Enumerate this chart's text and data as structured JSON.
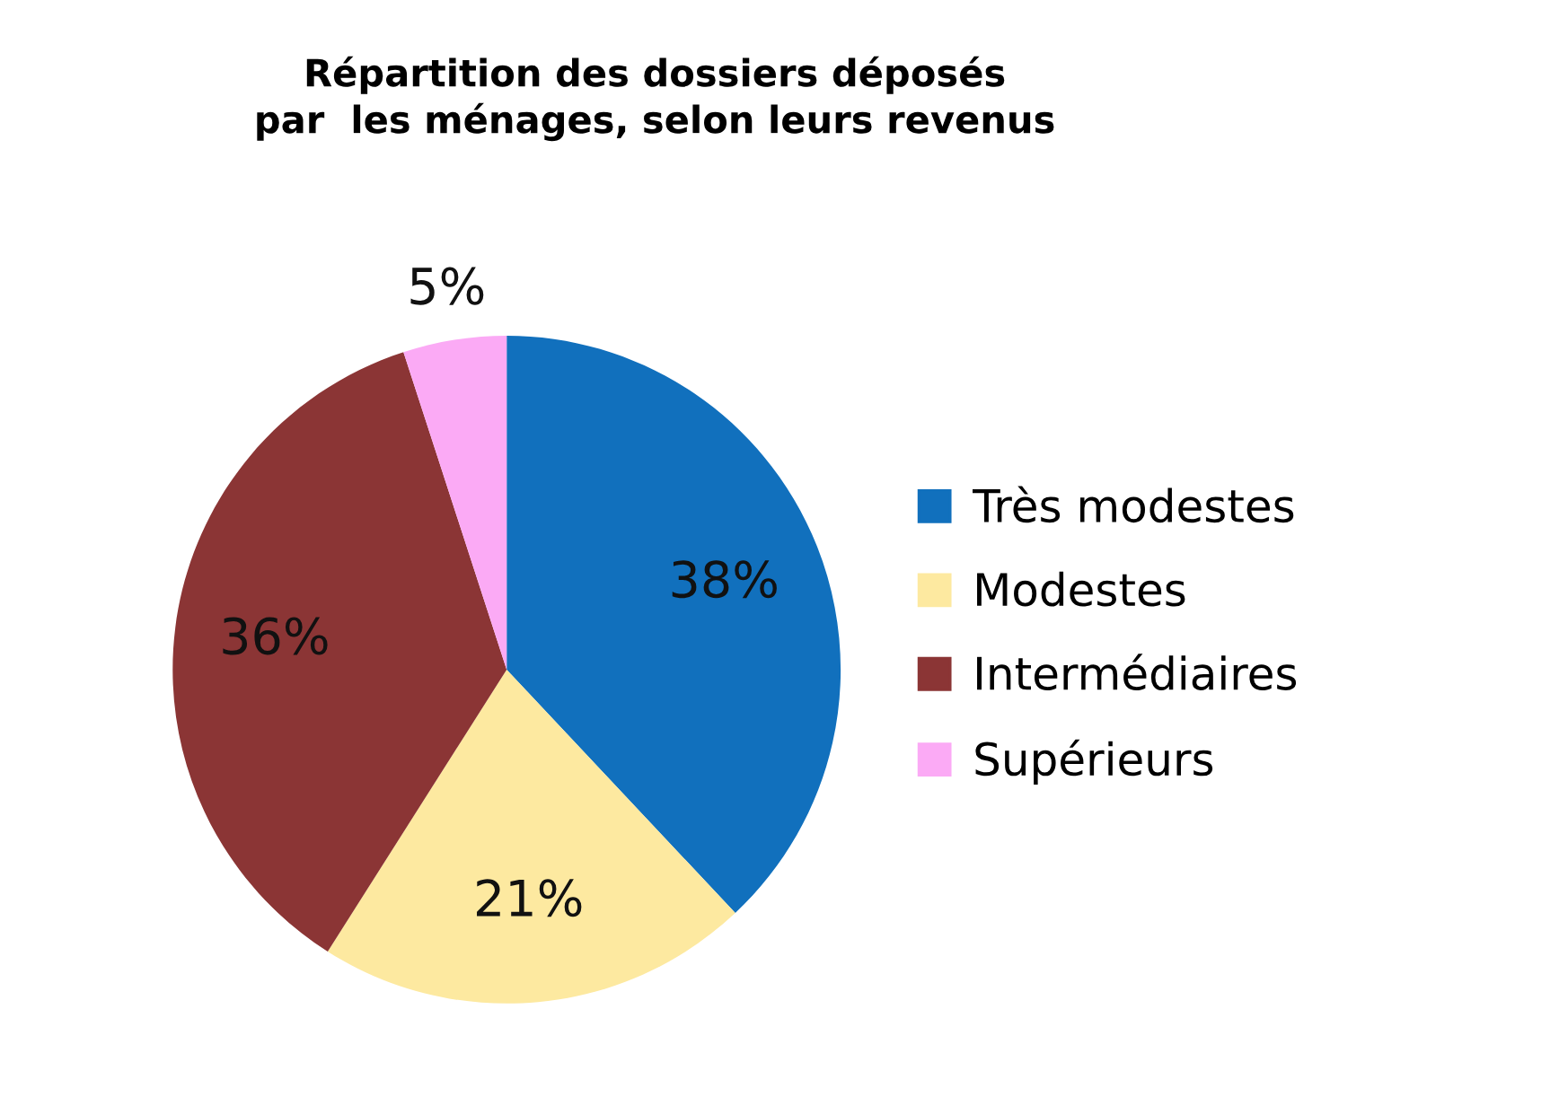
{
  "chart_data": {
    "type": "pie",
    "title": "Répartition des dossiers déposés\npar  les ménages, selon leurs revenus",
    "categories": [
      "Très modestes",
      "Modestes",
      "Intermédiaires",
      "Supérieurs"
    ],
    "values": [
      38,
      21,
      36,
      5
    ],
    "colors": [
      "#1170bd",
      "#fde9a0",
      "#8b3535",
      "#fbaaf5"
    ],
    "value_labels": [
      "38%",
      "21%",
      "36%",
      "5%"
    ],
    "legend": "right"
  }
}
